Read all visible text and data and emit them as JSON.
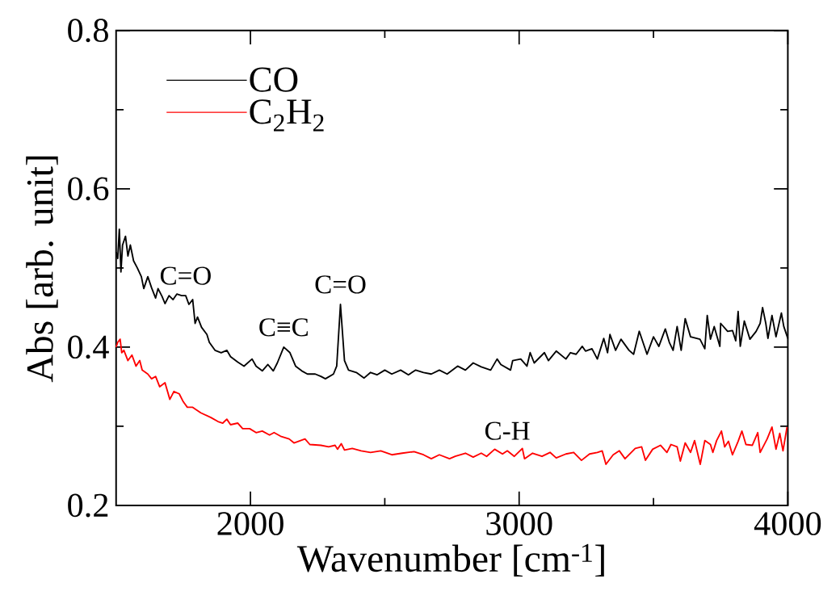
{
  "chart_data": {
    "type": "line",
    "xlabel": "Wavenumber [cm$^{-1}$]",
    "ylabel": "Abs [arb. unit]",
    "xlim": [
      1500,
      4000
    ],
    "ylim": [
      0.2,
      0.8
    ],
    "xticks": [
      2000,
      {
        "value": 2500,
        "label": null
      },
      3000,
      {
        "value": 3500,
        "label": null
      },
      4000
    ],
    "yticks": [
      0.2,
      {
        "value": 0.3,
        "label": null
      },
      0.4,
      {
        "value": 0.5,
        "label": null
      },
      0.6,
      {
        "value": 0.7,
        "label": null
      },
      0.8
    ],
    "legend": "top left",
    "line_style": "solid",
    "series": [
      {
        "name": "CO",
        "color": "#000000",
        "x": [
          1500,
          1506,
          1512,
          1518,
          1524,
          1535,
          1544,
          1553,
          1565,
          1579,
          1594,
          1603,
          1618,
          1632,
          1647,
          1656,
          1671,
          1682,
          1697,
          1712,
          1726,
          1744,
          1759,
          1771,
          1785,
          1794,
          1803,
          1818,
          1838,
          1847,
          1868,
          1891,
          1912,
          1926,
          1953,
          1976,
          2006,
          2021,
          2044,
          2065,
          2085,
          2100,
          2124,
          2147,
          2168,
          2191,
          2212,
          2241,
          2262,
          2279,
          2309,
          2321,
          2335,
          2350,
          2365,
          2394,
          2423,
          2447,
          2471,
          2500,
          2526,
          2559,
          2588,
          2615,
          2644,
          2673,
          2703,
          2732,
          2771,
          2800,
          2829,
          2859,
          2894,
          2918,
          2932,
          2968,
          2976,
          3006,
          3029,
          3041,
          3056,
          3094,
          3109,
          3138,
          3174,
          3191,
          3212,
          3235,
          3247,
          3271,
          3291,
          3315,
          3329,
          3338,
          3359,
          3379,
          3409,
          3426,
          3447,
          3476,
          3500,
          3520,
          3544,
          3559,
          3573,
          3588,
          3603,
          3618,
          3638,
          3673,
          3691,
          3700,
          3712,
          3726,
          3747,
          3750,
          3776,
          3794,
          3806,
          3815,
          3823,
          3838,
          3859,
          3882,
          3897,
          3906,
          3918,
          3926,
          3941,
          3956,
          3976,
          3985,
          4000
        ],
        "values": [
          0.52,
          0.512,
          0.549,
          0.495,
          0.529,
          0.54,
          0.515,
          0.529,
          0.509,
          0.5,
          0.489,
          0.474,
          0.489,
          0.475,
          0.462,
          0.474,
          0.464,
          0.455,
          0.465,
          0.46,
          0.467,
          0.465,
          0.465,
          0.454,
          0.46,
          0.43,
          0.438,
          0.425,
          0.416,
          0.406,
          0.396,
          0.393,
          0.396,
          0.388,
          0.381,
          0.376,
          0.385,
          0.376,
          0.37,
          0.378,
          0.37,
          0.38,
          0.4,
          0.393,
          0.376,
          0.37,
          0.366,
          0.366,
          0.363,
          0.36,
          0.366,
          0.376,
          0.454,
          0.383,
          0.371,
          0.368,
          0.361,
          0.368,
          0.365,
          0.371,
          0.366,
          0.371,
          0.365,
          0.371,
          0.368,
          0.366,
          0.371,
          0.366,
          0.376,
          0.371,
          0.38,
          0.375,
          0.371,
          0.385,
          0.378,
          0.371,
          0.383,
          0.385,
          0.376,
          0.393,
          0.38,
          0.393,
          0.383,
          0.395,
          0.385,
          0.393,
          0.391,
          0.401,
          0.395,
          0.398,
          0.385,
          0.411,
          0.393,
          0.416,
          0.396,
          0.41,
          0.396,
          0.391,
          0.42,
          0.391,
          0.413,
          0.401,
          0.423,
          0.406,
          0.396,
          0.426,
          0.396,
          0.436,
          0.413,
          0.41,
          0.398,
          0.44,
          0.41,
          0.426,
          0.401,
          0.43,
          0.42,
          0.421,
          0.408,
          0.445,
          0.401,
          0.433,
          0.41,
          0.42,
          0.43,
          0.45,
          0.43,
          0.411,
          0.44,
          0.413,
          0.443,
          0.426,
          0.411
        ]
      },
      {
        "name": "C$_{2}$H$_{2}$",
        "color": "#ff0000",
        "x": [
          1500,
          1506,
          1515,
          1521,
          1529,
          1544,
          1559,
          1574,
          1588,
          1597,
          1618,
          1632,
          1647,
          1662,
          1682,
          1700,
          1715,
          1735,
          1750,
          1765,
          1785,
          1815,
          1853,
          1879,
          1897,
          1912,
          1926,
          1953,
          1971,
          1997,
          2021,
          2044,
          2071,
          2088,
          2115,
          2144,
          2162,
          2203,
          2221,
          2262,
          2291,
          2315,
          2324,
          2338,
          2350,
          2379,
          2412,
          2447,
          2485,
          2526,
          2565,
          2609,
          2644,
          2673,
          2703,
          2741,
          2762,
          2800,
          2829,
          2859,
          2879,
          2909,
          2938,
          2956,
          2982,
          3012,
          3020,
          3050,
          3085,
          3115,
          3138,
          3174,
          3203,
          3232,
          3262,
          3291,
          3309,
          3323,
          3350,
          3373,
          3394,
          3432,
          3456,
          3470,
          3497,
          3526,
          3550,
          3565,
          3588,
          3600,
          3618,
          3638,
          3653,
          3674,
          3691,
          3712,
          3721,
          3735,
          3753,
          3765,
          3779,
          3794,
          3815,
          3829,
          3844,
          3868,
          3888,
          3897,
          3923,
          3941,
          3956,
          3970,
          3982,
          3997
        ],
        "values": [
          0.4,
          0.406,
          0.41,
          0.393,
          0.396,
          0.383,
          0.39,
          0.376,
          0.383,
          0.371,
          0.366,
          0.36,
          0.363,
          0.35,
          0.355,
          0.334,
          0.344,
          0.341,
          0.331,
          0.324,
          0.324,
          0.317,
          0.311,
          0.306,
          0.304,
          0.309,
          0.302,
          0.304,
          0.297,
          0.297,
          0.292,
          0.294,
          0.289,
          0.292,
          0.287,
          0.284,
          0.279,
          0.284,
          0.277,
          0.276,
          0.274,
          0.276,
          0.271,
          0.278,
          0.27,
          0.272,
          0.269,
          0.267,
          0.269,
          0.264,
          0.266,
          0.268,
          0.264,
          0.259,
          0.264,
          0.259,
          0.262,
          0.266,
          0.261,
          0.266,
          0.262,
          0.271,
          0.265,
          0.269,
          0.262,
          0.272,
          0.259,
          0.266,
          0.262,
          0.267,
          0.26,
          0.265,
          0.267,
          0.257,
          0.265,
          0.267,
          0.269,
          0.252,
          0.264,
          0.269,
          0.259,
          0.272,
          0.274,
          0.257,
          0.271,
          0.276,
          0.267,
          0.277,
          0.274,
          0.256,
          0.279,
          0.267,
          0.282,
          0.252,
          0.282,
          0.277,
          0.267,
          0.282,
          0.294,
          0.274,
          0.281,
          0.264,
          0.281,
          0.294,
          0.277,
          0.276,
          0.292,
          0.267,
          0.284,
          0.299,
          0.271,
          0.291,
          0.269,
          0.299
        ]
      }
    ],
    "annotations": [
      {
        "text": "C=O",
        "x": 1759,
        "y": 0.465
      },
      {
        "text": "C≡C",
        "x": 2124,
        "y": 0.4
      },
      {
        "text": "C=O",
        "x": 2335,
        "y": 0.454
      },
      {
        "text": "C-H",
        "x": 2956,
        "y": 0.269
      }
    ]
  }
}
